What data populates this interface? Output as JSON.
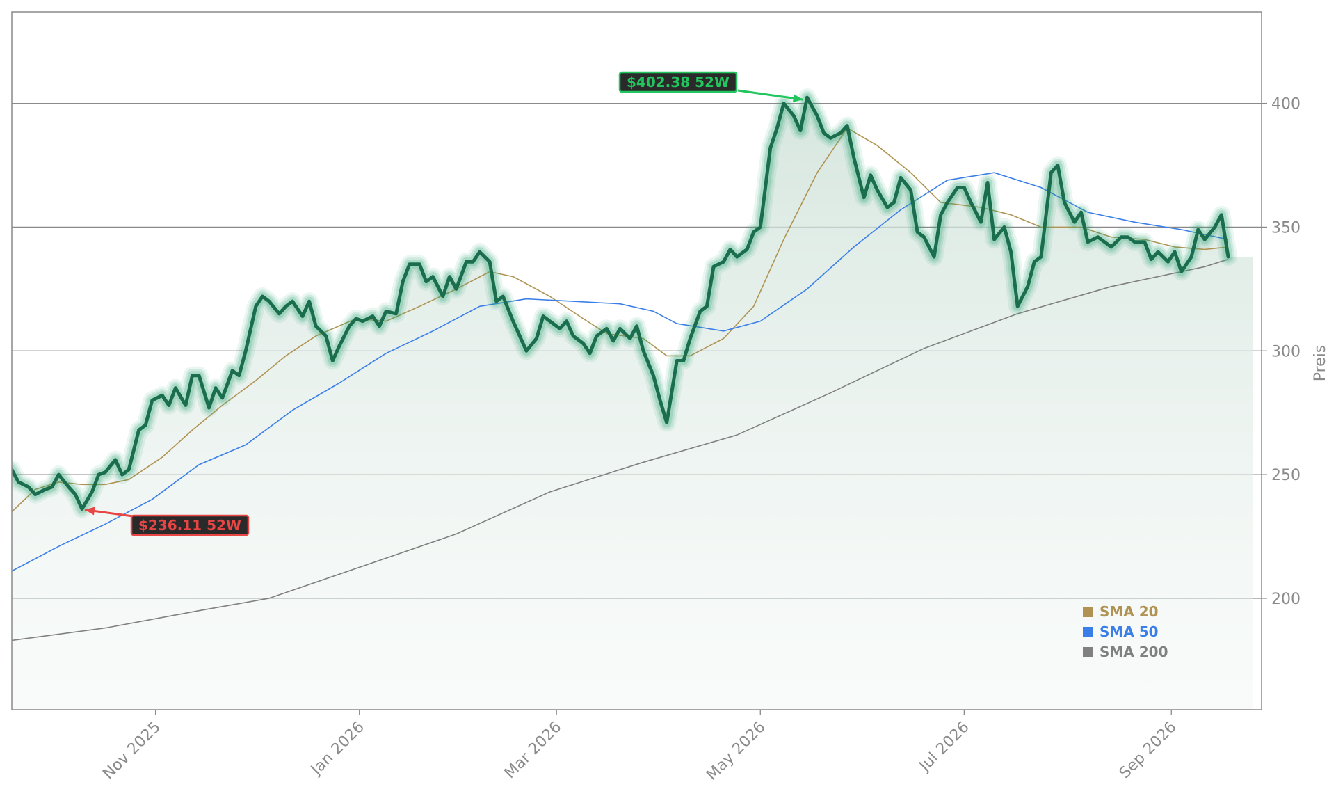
{
  "chart_data": {
    "type": "line",
    "ylabel": "Preis",
    "xlabel": "",
    "title": "",
    "ylim": [
      155,
      437
    ],
    "xlim": [
      "2025-09-19",
      "2026-09-28"
    ],
    "y_ticks": [
      200,
      250,
      300,
      350,
      400
    ],
    "x_ticks": [
      {
        "date": "2025-11-01",
        "label": "Nov 2025"
      },
      {
        "date": "2026-01-01",
        "label": "Jan 2026"
      },
      {
        "date": "2026-03-01",
        "label": "Mar 2026"
      },
      {
        "date": "2026-05-01",
        "label": "May 2026"
      },
      {
        "date": "2026-07-01",
        "label": "Jul 2026"
      },
      {
        "date": "2026-09-01",
        "label": "Sep 2026"
      }
    ],
    "grid": "horizontal",
    "legend_position": "bottom-right",
    "colors": {
      "price": "#1a6e4e",
      "price_glow": "#2aa574",
      "fill": "#dce9e3",
      "sma20": "#b09352",
      "sma50": "#3a7ee8",
      "sma200": "#808080",
      "high": "#22c55e",
      "low": "#e84545",
      "grid": "#8a8a8a",
      "frame": "#8a8a8a"
    },
    "last_price": 338,
    "price": [
      [
        "2025-09-19",
        252
      ],
      [
        "2025-09-21",
        247
      ],
      [
        "2025-09-24",
        245
      ],
      [
        "2025-09-26",
        242
      ],
      [
        "2025-09-29",
        244
      ],
      [
        "2025-10-01",
        245
      ],
      [
        "2025-10-03",
        250
      ],
      [
        "2025-10-06",
        245
      ],
      [
        "2025-10-08",
        242
      ],
      [
        "2025-10-10",
        236.11
      ],
      [
        "2025-10-13",
        243
      ],
      [
        "2025-10-15",
        250
      ],
      [
        "2025-10-17",
        251
      ],
      [
        "2025-10-20",
        256
      ],
      [
        "2025-10-22",
        250
      ],
      [
        "2025-10-24",
        252
      ],
      [
        "2025-10-27",
        268
      ],
      [
        "2025-10-29",
        270
      ],
      [
        "2025-10-31",
        280
      ],
      [
        "2025-11-03",
        282
      ],
      [
        "2025-11-05",
        278
      ],
      [
        "2025-11-07",
        285
      ],
      [
        "2025-11-10",
        278
      ],
      [
        "2025-11-12",
        290
      ],
      [
        "2025-11-14",
        290
      ],
      [
        "2025-11-17",
        277
      ],
      [
        "2025-11-19",
        285
      ],
      [
        "2025-11-21",
        281
      ],
      [
        "2025-11-24",
        292
      ],
      [
        "2025-11-26",
        290
      ],
      [
        "2025-11-28",
        300
      ],
      [
        "2025-12-01",
        318
      ],
      [
        "2025-12-03",
        322
      ],
      [
        "2025-12-05",
        320
      ],
      [
        "2025-12-08",
        315
      ],
      [
        "2025-12-10",
        318
      ],
      [
        "2025-12-12",
        320
      ],
      [
        "2025-12-15",
        314
      ],
      [
        "2025-12-17",
        320
      ],
      [
        "2025-12-19",
        310
      ],
      [
        "2025-12-22",
        306
      ],
      [
        "2025-12-24",
        296
      ],
      [
        "2025-12-26",
        302
      ],
      [
        "2025-12-29",
        310
      ],
      [
        "2025-12-31",
        313
      ],
      [
        "2026-01-02",
        312
      ],
      [
        "2026-01-05",
        314
      ],
      [
        "2026-01-07",
        310
      ],
      [
        "2026-01-09",
        316
      ],
      [
        "2026-01-12",
        315
      ],
      [
        "2026-01-14",
        328
      ],
      [
        "2026-01-16",
        335
      ],
      [
        "2026-01-19",
        335
      ],
      [
        "2026-01-21",
        328
      ],
      [
        "2026-01-23",
        330
      ],
      [
        "2026-01-26",
        322
      ],
      [
        "2026-01-28",
        330
      ],
      [
        "2026-01-30",
        325
      ],
      [
        "2026-02-02",
        336
      ],
      [
        "2026-02-04",
        336
      ],
      [
        "2026-02-06",
        340
      ],
      [
        "2026-02-09",
        336
      ],
      [
        "2026-02-11",
        320
      ],
      [
        "2026-02-13",
        322
      ],
      [
        "2026-02-16",
        312
      ],
      [
        "2026-02-18",
        306
      ],
      [
        "2026-02-20",
        300
      ],
      [
        "2026-02-23",
        305
      ],
      [
        "2026-02-25",
        314
      ],
      [
        "2026-02-27",
        312
      ],
      [
        "2026-03-02",
        309
      ],
      [
        "2026-03-04",
        312
      ],
      [
        "2026-03-06",
        306
      ],
      [
        "2026-03-09",
        303
      ],
      [
        "2026-03-11",
        299
      ],
      [
        "2026-03-13",
        306
      ],
      [
        "2026-03-16",
        309
      ],
      [
        "2026-03-18",
        304
      ],
      [
        "2026-03-20",
        309
      ],
      [
        "2026-03-23",
        305
      ],
      [
        "2026-03-25",
        310
      ],
      [
        "2026-03-27",
        300
      ],
      [
        "2026-03-30",
        290
      ],
      [
        "2026-04-01",
        280
      ],
      [
        "2026-04-03",
        271
      ],
      [
        "2026-04-06",
        296
      ],
      [
        "2026-04-08",
        296
      ],
      [
        "2026-04-10",
        305
      ],
      [
        "2026-04-13",
        316
      ],
      [
        "2026-04-15",
        318
      ],
      [
        "2026-04-17",
        334
      ],
      [
        "2026-04-20",
        336
      ],
      [
        "2026-04-22",
        341
      ],
      [
        "2026-04-24",
        338
      ],
      [
        "2026-04-27",
        341
      ],
      [
        "2026-04-29",
        348
      ],
      [
        "2026-05-01",
        350
      ],
      [
        "2026-05-04",
        382
      ],
      [
        "2026-05-06",
        390
      ],
      [
        "2026-05-08",
        400
      ],
      [
        "2026-05-11",
        395
      ],
      [
        "2026-05-13",
        389
      ],
      [
        "2026-05-15",
        402.38
      ],
      [
        "2026-05-18",
        395
      ],
      [
        "2026-05-20",
        388
      ],
      [
        "2026-05-22",
        386
      ],
      [
        "2026-05-25",
        388
      ],
      [
        "2026-05-27",
        391
      ],
      [
        "2026-05-29",
        378
      ],
      [
        "2026-06-01",
        362
      ],
      [
        "2026-06-03",
        371
      ],
      [
        "2026-06-05",
        365
      ],
      [
        "2026-06-08",
        358
      ],
      [
        "2026-06-10",
        360
      ],
      [
        "2026-06-12",
        370
      ],
      [
        "2026-06-15",
        365
      ],
      [
        "2026-06-17",
        348
      ],
      [
        "2026-06-19",
        346
      ],
      [
        "2026-06-22",
        338
      ],
      [
        "2026-06-24",
        355
      ],
      [
        "2026-06-26",
        360
      ],
      [
        "2026-06-29",
        366
      ],
      [
        "2026-07-01",
        366
      ],
      [
        "2026-07-03",
        360
      ],
      [
        "2026-07-06",
        352
      ],
      [
        "2026-07-08",
        368
      ],
      [
        "2026-07-10",
        345
      ],
      [
        "2026-07-13",
        350
      ],
      [
        "2026-07-15",
        340
      ],
      [
        "2026-07-17",
        318
      ],
      [
        "2026-07-20",
        326
      ],
      [
        "2026-07-22",
        336
      ],
      [
        "2026-07-24",
        338
      ],
      [
        "2026-07-27",
        372
      ],
      [
        "2026-07-29",
        375
      ],
      [
        "2026-07-31",
        360
      ],
      [
        "2026-08-03",
        352
      ],
      [
        "2026-08-05",
        356
      ],
      [
        "2026-08-07",
        344
      ],
      [
        "2026-08-10",
        346
      ],
      [
        "2026-08-12",
        344
      ],
      [
        "2026-08-14",
        342
      ],
      [
        "2026-08-17",
        346
      ],
      [
        "2026-08-19",
        346
      ],
      [
        "2026-08-21",
        344
      ],
      [
        "2026-08-24",
        344
      ],
      [
        "2026-08-26",
        337
      ],
      [
        "2026-08-28",
        340
      ],
      [
        "2026-08-31",
        336
      ],
      [
        "2026-09-02",
        340
      ],
      [
        "2026-09-04",
        332
      ],
      [
        "2026-09-07",
        338
      ],
      [
        "2026-09-09",
        349
      ],
      [
        "2026-09-11",
        345
      ],
      [
        "2026-09-14",
        350
      ],
      [
        "2026-09-16",
        355
      ],
      [
        "2026-09-18",
        338
      ]
    ],
    "series": [
      {
        "name": "SMA 20",
        "points": [
          [
            "2025-09-19",
            235
          ],
          [
            "2025-09-26",
            244
          ],
          [
            "2025-10-03",
            247
          ],
          [
            "2025-10-10",
            246
          ],
          [
            "2025-10-17",
            246
          ],
          [
            "2025-10-24",
            248
          ],
          [
            "2025-11-03",
            257
          ],
          [
            "2025-11-12",
            268
          ],
          [
            "2025-11-21",
            278
          ],
          [
            "2025-12-01",
            288
          ],
          [
            "2025-12-10",
            298
          ],
          [
            "2025-12-19",
            306
          ],
          [
            "2025-12-31",
            313
          ],
          [
            "2026-01-09",
            312
          ],
          [
            "2026-01-19",
            318
          ],
          [
            "2026-01-30",
            325
          ],
          [
            "2026-02-09",
            332
          ],
          [
            "2026-02-16",
            330
          ],
          [
            "2026-02-27",
            322
          ],
          [
            "2026-03-09",
            313
          ],
          [
            "2026-03-16",
            307
          ],
          [
            "2026-03-27",
            305
          ],
          [
            "2026-04-03",
            298
          ],
          [
            "2026-04-10",
            298
          ],
          [
            "2026-04-20",
            305
          ],
          [
            "2026-04-29",
            318
          ],
          [
            "2026-05-08",
            345
          ],
          [
            "2026-05-18",
            372
          ],
          [
            "2026-05-27",
            390
          ],
          [
            "2026-06-05",
            383
          ],
          [
            "2026-06-15",
            372
          ],
          [
            "2026-06-24",
            360
          ],
          [
            "2026-07-06",
            358
          ],
          [
            "2026-07-15",
            355
          ],
          [
            "2026-07-24",
            350
          ],
          [
            "2026-08-05",
            350
          ],
          [
            "2026-08-14",
            346
          ],
          [
            "2026-08-24",
            345
          ],
          [
            "2026-09-02",
            342
          ],
          [
            "2026-09-11",
            341
          ],
          [
            "2026-09-18",
            342
          ]
        ]
      },
      {
        "name": "SMA 50",
        "points": [
          [
            "2025-09-19",
            211
          ],
          [
            "2025-10-03",
            221
          ],
          [
            "2025-10-17",
            230
          ],
          [
            "2025-10-31",
            240
          ],
          [
            "2025-11-14",
            254
          ],
          [
            "2025-11-28",
            262
          ],
          [
            "2025-12-12",
            276
          ],
          [
            "2025-12-26",
            287
          ],
          [
            "2026-01-09",
            299
          ],
          [
            "2026-01-23",
            308
          ],
          [
            "2026-02-06",
            318
          ],
          [
            "2026-02-20",
            321
          ],
          [
            "2026-03-06",
            320
          ],
          [
            "2026-03-20",
            319
          ],
          [
            "2026-03-30",
            316
          ],
          [
            "2026-04-06",
            311
          ],
          [
            "2026-04-20",
            308
          ],
          [
            "2026-05-01",
            312
          ],
          [
            "2026-05-15",
            325
          ],
          [
            "2026-05-29",
            342
          ],
          [
            "2026-06-12",
            357
          ],
          [
            "2026-06-26",
            369
          ],
          [
            "2026-07-10",
            372
          ],
          [
            "2026-07-24",
            366
          ],
          [
            "2026-08-07",
            356
          ],
          [
            "2026-08-21",
            352
          ],
          [
            "2026-09-04",
            349
          ],
          [
            "2026-09-18",
            345
          ]
        ]
      },
      {
        "name": "SMA 200",
        "points": [
          [
            "2025-09-19",
            183
          ],
          [
            "2025-10-17",
            188
          ],
          [
            "2025-11-14",
            195
          ],
          [
            "2025-12-05",
            200
          ],
          [
            "2026-01-02",
            213
          ],
          [
            "2026-01-30",
            226
          ],
          [
            "2026-02-27",
            243
          ],
          [
            "2026-03-27",
            255
          ],
          [
            "2026-04-24",
            266
          ],
          [
            "2026-05-22",
            283
          ],
          [
            "2026-06-19",
            301
          ],
          [
            "2026-07-17",
            315
          ],
          [
            "2026-08-14",
            326
          ],
          [
            "2026-09-11",
            334
          ],
          [
            "2026-09-18",
            337
          ]
        ]
      }
    ],
    "annotations": [
      {
        "id": "high",
        "label": "$402.38 52W",
        "date": "2026-05-15",
        "value": 402.38
      },
      {
        "id": "low",
        "label": "$236.11 52W",
        "date": "2025-10-10",
        "value": 236.11
      }
    ]
  }
}
